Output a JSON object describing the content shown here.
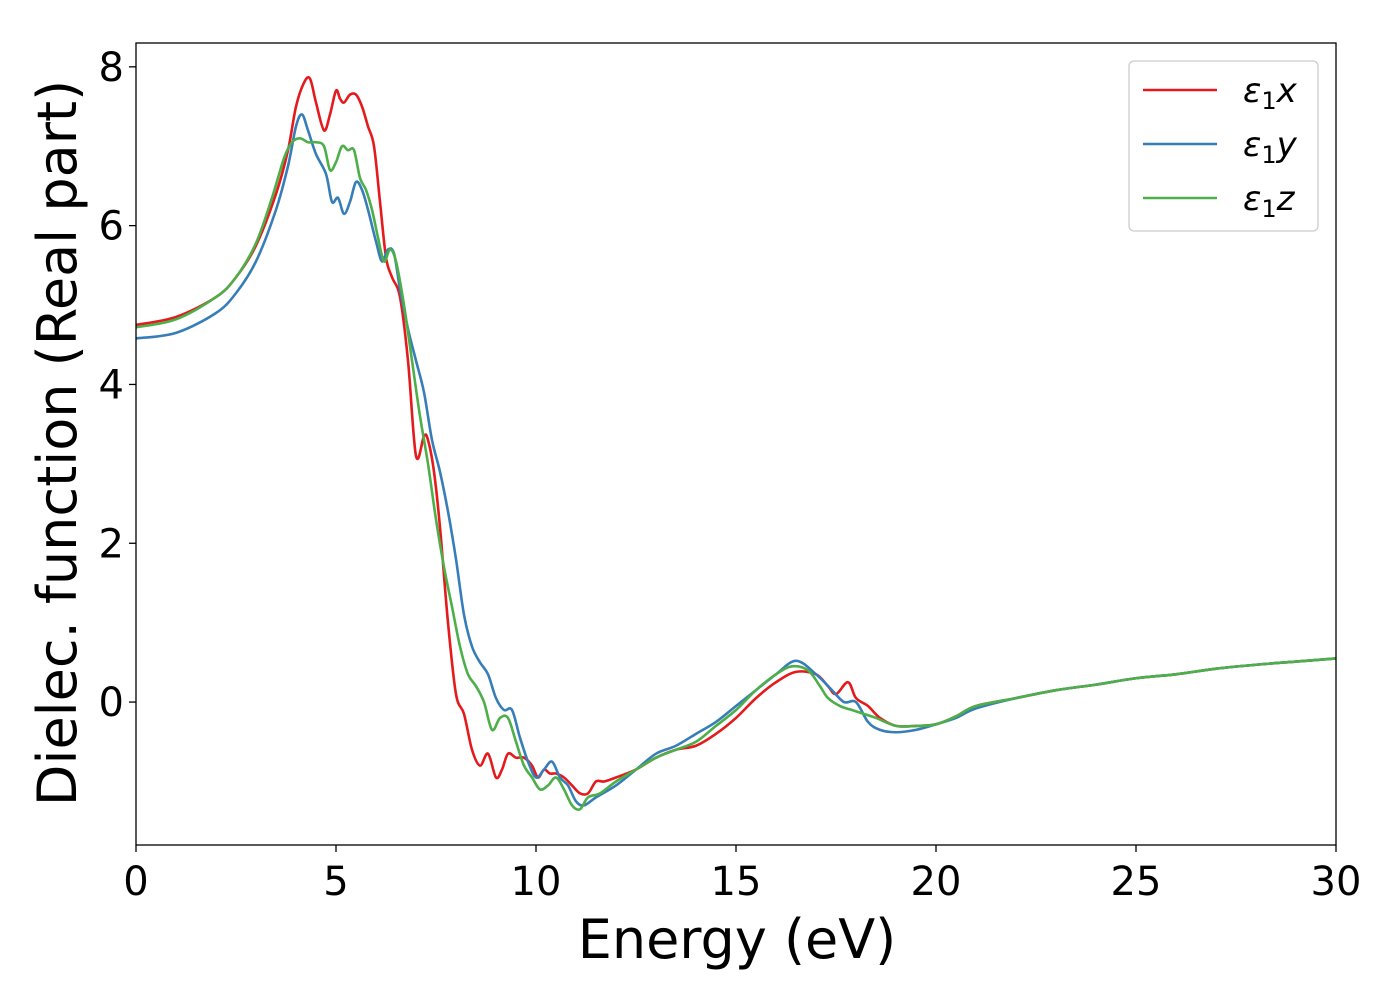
{
  "chart_data": {
    "type": "line",
    "title": "",
    "xlabel": "Energy (eV)",
    "ylabel": "Dielec. function (Real part)",
    "xlim": [
      0,
      30
    ],
    "ylim": [
      -1.8,
      8.3
    ],
    "xticks": [
      0,
      5,
      10,
      15,
      20,
      25,
      30
    ],
    "yticks": [
      0,
      2,
      4,
      6,
      8
    ],
    "grid": false,
    "legend": "top-right",
    "series": [
      {
        "name": "ε₁x",
        "label_base": "ε",
        "label_sub": "1",
        "label_axis": "x",
        "color": "#e41a1c",
        "x": [
          0,
          1,
          2,
          2.5,
          3,
          3.5,
          3.8,
          4.0,
          4.2,
          4.35,
          4.5,
          4.7,
          4.85,
          5.0,
          5.1,
          5.2,
          5.35,
          5.5,
          5.65,
          5.8,
          5.95,
          6.1,
          6.25,
          6.4,
          6.6,
          6.8,
          7.0,
          7.2,
          7.3,
          7.45,
          7.6,
          7.8,
          8.0,
          8.2,
          8.4,
          8.6,
          8.8,
          9.0,
          9.15,
          9.3,
          9.5,
          9.7,
          9.9,
          10.05,
          10.2,
          10.35,
          10.5,
          10.7,
          10.9,
          11.1,
          11.3,
          11.5,
          11.7,
          12.0,
          12.5,
          13.0,
          13.5,
          14.0,
          14.5,
          15.0,
          15.5,
          16.0,
          16.5,
          17.0,
          17.3,
          17.5,
          17.8,
          18.0,
          18.3,
          18.6,
          19.0,
          19.5,
          20.0,
          20.5,
          21.0,
          22.0,
          23.0,
          24.0,
          25.0,
          26.0,
          27.0,
          28.0,
          29.0,
          30.0
        ],
        "y": [
          4.75,
          4.85,
          5.1,
          5.35,
          5.75,
          6.4,
          6.95,
          7.5,
          7.8,
          7.85,
          7.55,
          7.2,
          7.4,
          7.7,
          7.6,
          7.55,
          7.65,
          7.65,
          7.5,
          7.25,
          7.0,
          6.3,
          5.6,
          5.35,
          5.1,
          4.3,
          3.1,
          3.35,
          3.3,
          2.9,
          2.2,
          1.0,
          0.1,
          -0.15,
          -0.6,
          -0.8,
          -0.65,
          -0.95,
          -0.85,
          -0.65,
          -0.7,
          -0.7,
          -0.8,
          -0.95,
          -0.85,
          -0.9,
          -0.9,
          -0.95,
          -1.05,
          -1.15,
          -1.15,
          -1.0,
          -1.0,
          -0.95,
          -0.85,
          -0.7,
          -0.6,
          -0.55,
          -0.4,
          -0.2,
          0.05,
          0.25,
          0.38,
          0.35,
          0.2,
          0.1,
          0.25,
          0.05,
          -0.05,
          -0.2,
          -0.3,
          -0.3,
          -0.28,
          -0.18,
          -0.05,
          0.05,
          0.15,
          0.22,
          0.3,
          0.35,
          0.42,
          0.47,
          0.51,
          0.55
        ]
      },
      {
        "name": "ε₁y",
        "label_base": "ε",
        "label_sub": "1",
        "label_axis": "y",
        "color": "#377eb8",
        "x": [
          0,
          1,
          2,
          2.5,
          3,
          3.5,
          3.8,
          4.0,
          4.15,
          4.3,
          4.5,
          4.75,
          4.9,
          5.05,
          5.2,
          5.35,
          5.5,
          5.65,
          5.8,
          6.0,
          6.15,
          6.3,
          6.45,
          6.6,
          6.8,
          7.0,
          7.2,
          7.4,
          7.6,
          7.8,
          8.0,
          8.2,
          8.4,
          8.6,
          8.8,
          9.0,
          9.2,
          9.4,
          9.6,
          9.8,
          10.0,
          10.2,
          10.4,
          10.6,
          10.8,
          11.0,
          11.2,
          11.5,
          12.0,
          12.5,
          13.0,
          13.5,
          14.0,
          14.5,
          15.0,
          15.5,
          16.0,
          16.5,
          17.0,
          17.4,
          17.7,
          18.0,
          18.3,
          18.6,
          19.0,
          19.5,
          20.0,
          20.5,
          21.0,
          22.0,
          23.0,
          24.0,
          25.0,
          26.0,
          27.0,
          28.0,
          29.0,
          30.0
        ],
        "y": [
          4.58,
          4.65,
          4.9,
          5.15,
          5.55,
          6.2,
          6.75,
          7.25,
          7.4,
          7.2,
          6.9,
          6.65,
          6.3,
          6.35,
          6.15,
          6.3,
          6.55,
          6.45,
          6.2,
          5.8,
          5.55,
          5.7,
          5.65,
          5.2,
          4.7,
          4.3,
          3.9,
          3.3,
          2.9,
          2.4,
          1.8,
          1.1,
          0.7,
          0.5,
          0.35,
          0.05,
          -0.1,
          -0.1,
          -0.45,
          -0.75,
          -0.95,
          -0.85,
          -0.75,
          -0.95,
          -1.05,
          -1.25,
          -1.3,
          -1.2,
          -1.05,
          -0.85,
          -0.65,
          -0.55,
          -0.4,
          -0.25,
          -0.05,
          0.15,
          0.35,
          0.52,
          0.35,
          0.15,
          0.0,
          0.0,
          -0.25,
          -0.35,
          -0.38,
          -0.35,
          -0.28,
          -0.2,
          -0.08,
          0.05,
          0.15,
          0.22,
          0.3,
          0.35,
          0.42,
          0.47,
          0.51,
          0.55
        ]
      },
      {
        "name": "ε₁z",
        "label_base": "ε",
        "label_sub": "1",
        "label_axis": "z",
        "color": "#4daf4a",
        "x": [
          0,
          1,
          2,
          2.5,
          3,
          3.4,
          3.7,
          3.9,
          4.1,
          4.3,
          4.5,
          4.7,
          4.85,
          5.0,
          5.15,
          5.3,
          5.45,
          5.6,
          5.75,
          5.9,
          6.05,
          6.2,
          6.35,
          6.5,
          6.7,
          6.9,
          7.1,
          7.3,
          7.5,
          7.7,
          7.9,
          8.1,
          8.3,
          8.5,
          8.7,
          8.9,
          9.1,
          9.3,
          9.5,
          9.7,
          9.9,
          10.1,
          10.3,
          10.5,
          10.7,
          10.9,
          11.1,
          11.3,
          11.6,
          12.0,
          12.5,
          13.0,
          13.5,
          14.0,
          14.5,
          15.0,
          15.5,
          16.0,
          16.4,
          16.8,
          17.1,
          17.3,
          17.6,
          17.9,
          18.2,
          18.5,
          19.0,
          19.5,
          20.0,
          20.5,
          21.0,
          22.0,
          23.0,
          24.0,
          25.0,
          26.0,
          27.0,
          28.0,
          29.0,
          30.0
        ],
        "y": [
          4.72,
          4.82,
          5.1,
          5.35,
          5.78,
          6.35,
          6.85,
          7.05,
          7.1,
          7.05,
          7.05,
          7.0,
          6.7,
          6.8,
          7.0,
          6.95,
          6.95,
          6.6,
          6.45,
          6.2,
          5.85,
          5.55,
          5.7,
          5.55,
          5.0,
          4.3,
          3.6,
          3.0,
          2.3,
          1.7,
          1.2,
          0.7,
          0.35,
          0.2,
          0.0,
          -0.35,
          -0.2,
          -0.2,
          -0.5,
          -0.8,
          -0.95,
          -1.1,
          -1.05,
          -0.95,
          -1.1,
          -1.3,
          -1.35,
          -1.2,
          -1.15,
          -1.0,
          -0.85,
          -0.7,
          -0.6,
          -0.5,
          -0.3,
          -0.1,
          0.15,
          0.35,
          0.45,
          0.4,
          0.2,
          0.05,
          -0.05,
          -0.1,
          -0.15,
          -0.2,
          -0.3,
          -0.3,
          -0.28,
          -0.18,
          -0.05,
          0.05,
          0.15,
          0.22,
          0.3,
          0.35,
          0.42,
          0.47,
          0.51,
          0.55
        ]
      }
    ]
  }
}
